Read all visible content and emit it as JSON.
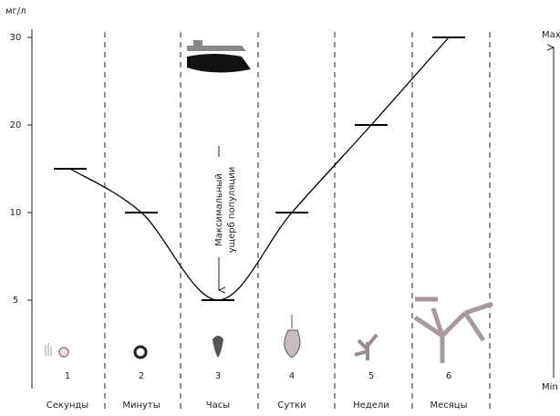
{
  "chart_data": {
    "type": "level",
    "y_label": "мг/л",
    "columns": [
      "1",
      "2",
      "3",
      "4",
      "5",
      "6"
    ],
    "categories": [
      "Секунды",
      "Минуты",
      "Часы",
      "Сутки",
      "Недели",
      "Месяцы"
    ],
    "values": [
      15,
      10,
      5,
      10,
      20,
      30
    ],
    "yticks": [
      5,
      10,
      20,
      30
    ],
    "annotation": [
      "Максимальный",
      "ущерб популяции"
    ],
    "right_axis": {
      "top": "Max",
      "bottom": "Min"
    },
    "color": "#000000"
  }
}
